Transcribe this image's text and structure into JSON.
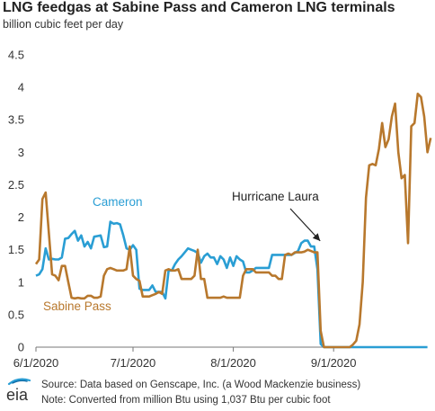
{
  "chart_data": {
    "type": "line",
    "title": "LNG feedgas at Sabine Pass and Cameron LNG terminals",
    "ylabel": "billion cubic feet per day",
    "ylim": [
      0,
      4.5
    ],
    "yticks": [
      "0",
      "0.5",
      "1",
      "1.5",
      "2",
      "2.5",
      "3",
      "3.5",
      "4",
      "4.5"
    ],
    "xlim": [
      "2020-06-01",
      "2020-09-30"
    ],
    "xticks": [
      {
        "date": "2020-06-01",
        "label": "6/1/2020"
      },
      {
        "date": "2020-07-01",
        "label": "7/1/2020"
      },
      {
        "date": "2020-08-01",
        "label": "8/1/2020"
      },
      {
        "date": "2020-09-01",
        "label": "9/1/2020"
      }
    ],
    "grid": false,
    "series": [
      {
        "name": "Cameron",
        "color": "#2a9ed4",
        "points": [
          [
            "2020-06-01",
            1.1
          ],
          [
            "2020-06-02",
            1.12
          ],
          [
            "2020-06-03",
            1.2
          ],
          [
            "2020-06-04",
            1.52
          ],
          [
            "2020-06-05",
            1.35
          ],
          [
            "2020-06-06",
            1.36
          ],
          [
            "2020-06-07",
            1.35
          ],
          [
            "2020-06-08",
            1.35
          ],
          [
            "2020-06-09",
            1.38
          ],
          [
            "2020-06-10",
            1.67
          ],
          [
            "2020-06-11",
            1.68
          ],
          [
            "2020-06-12",
            1.74
          ],
          [
            "2020-06-13",
            1.79
          ],
          [
            "2020-06-14",
            1.64
          ],
          [
            "2020-06-15",
            1.72
          ],
          [
            "2020-06-16",
            1.55
          ],
          [
            "2020-06-17",
            1.62
          ],
          [
            "2020-06-18",
            1.52
          ],
          [
            "2020-06-19",
            1.7
          ],
          [
            "2020-06-20",
            1.71
          ],
          [
            "2020-06-21",
            1.72
          ],
          [
            "2020-06-22",
            1.54
          ],
          [
            "2020-06-23",
            1.55
          ],
          [
            "2020-06-24",
            1.93
          ],
          [
            "2020-06-25",
            1.9
          ],
          [
            "2020-06-26",
            1.91
          ],
          [
            "2020-06-27",
            1.89
          ],
          [
            "2020-06-28",
            1.72
          ],
          [
            "2020-06-29",
            1.52
          ],
          [
            "2020-06-30",
            1.5
          ],
          [
            "2020-07-01",
            1.57
          ],
          [
            "2020-07-02",
            1.5
          ],
          [
            "2020-07-03",
            0.9
          ],
          [
            "2020-07-04",
            0.88
          ],
          [
            "2020-07-05",
            0.88
          ],
          [
            "2020-07-06",
            0.88
          ],
          [
            "2020-07-07",
            0.95
          ],
          [
            "2020-07-08",
            0.85
          ],
          [
            "2020-07-09",
            0.85
          ],
          [
            "2020-07-10",
            0.85
          ],
          [
            "2020-07-11",
            0.75
          ],
          [
            "2020-07-12",
            1.18
          ],
          [
            "2020-07-13",
            1.18
          ],
          [
            "2020-07-14",
            1.28
          ],
          [
            "2020-07-15",
            1.35
          ],
          [
            "2020-07-16",
            1.4
          ],
          [
            "2020-07-17",
            1.46
          ],
          [
            "2020-07-18",
            1.52
          ],
          [
            "2020-07-19",
            1.5
          ],
          [
            "2020-07-20",
            1.48
          ],
          [
            "2020-07-21",
            1.45
          ],
          [
            "2020-07-22",
            1.3
          ],
          [
            "2020-07-23",
            1.4
          ],
          [
            "2020-07-24",
            1.44
          ],
          [
            "2020-07-25",
            1.38
          ],
          [
            "2020-07-26",
            1.38
          ],
          [
            "2020-07-27",
            1.28
          ],
          [
            "2020-07-28",
            1.4
          ],
          [
            "2020-07-29",
            1.35
          ],
          [
            "2020-07-30",
            1.22
          ],
          [
            "2020-07-31",
            1.38
          ],
          [
            "2020-08-01",
            1.25
          ],
          [
            "2020-08-02",
            1.4
          ],
          [
            "2020-08-03",
            1.35
          ],
          [
            "2020-08-04",
            1.32
          ],
          [
            "2020-08-05",
            1.15
          ],
          [
            "2020-08-06",
            1.15
          ],
          [
            "2020-08-07",
            1.18
          ],
          [
            "2020-08-08",
            1.22
          ],
          [
            "2020-08-09",
            1.22
          ],
          [
            "2020-08-10",
            1.22
          ],
          [
            "2020-08-11",
            1.22
          ],
          [
            "2020-08-12",
            1.22
          ],
          [
            "2020-08-13",
            1.42
          ],
          [
            "2020-08-14",
            1.42
          ],
          [
            "2020-08-15",
            1.42
          ],
          [
            "2020-08-16",
            1.42
          ],
          [
            "2020-08-17",
            1.42
          ],
          [
            "2020-08-18",
            1.42
          ],
          [
            "2020-08-19",
            1.42
          ],
          [
            "2020-08-20",
            1.45
          ],
          [
            "2020-08-21",
            1.48
          ],
          [
            "2020-08-22",
            1.6
          ],
          [
            "2020-08-23",
            1.64
          ],
          [
            "2020-08-24",
            1.64
          ],
          [
            "2020-08-25",
            1.55
          ],
          [
            "2020-08-26",
            1.55
          ],
          [
            "2020-08-27",
            1.2
          ],
          [
            "2020-08-28",
            0.05
          ],
          [
            "2020-08-29",
            0.0
          ],
          [
            "2020-08-30",
            0.0
          ],
          [
            "2020-08-31",
            0.0
          ],
          [
            "2020-09-05",
            0.0
          ],
          [
            "2020-09-10",
            0.0
          ],
          [
            "2020-09-15",
            0.0
          ],
          [
            "2020-09-20",
            0.0
          ],
          [
            "2020-09-25",
            0.0
          ],
          [
            "2020-09-30",
            0.0
          ]
        ]
      },
      {
        "name": "Sabine Pass",
        "color": "#b8782d",
        "points": [
          [
            "2020-06-01",
            1.28
          ],
          [
            "2020-06-02",
            1.35
          ],
          [
            "2020-06-03",
            2.28
          ],
          [
            "2020-06-04",
            2.38
          ],
          [
            "2020-06-05",
            1.75
          ],
          [
            "2020-06-06",
            1.12
          ],
          [
            "2020-06-07",
            1.1
          ],
          [
            "2020-06-08",
            1.03
          ],
          [
            "2020-06-09",
            1.25
          ],
          [
            "2020-06-10",
            1.25
          ],
          [
            "2020-06-11",
            1.0
          ],
          [
            "2020-06-12",
            0.76
          ],
          [
            "2020-06-13",
            0.75
          ],
          [
            "2020-06-14",
            0.76
          ],
          [
            "2020-06-15",
            0.75
          ],
          [
            "2020-06-16",
            0.75
          ],
          [
            "2020-06-17",
            0.79
          ],
          [
            "2020-06-18",
            0.79
          ],
          [
            "2020-06-19",
            0.76
          ],
          [
            "2020-06-20",
            0.76
          ],
          [
            "2020-06-21",
            0.78
          ],
          [
            "2020-06-22",
            1.1
          ],
          [
            "2020-06-23",
            1.2
          ],
          [
            "2020-06-24",
            1.22
          ],
          [
            "2020-06-25",
            1.2
          ],
          [
            "2020-06-26",
            1.18
          ],
          [
            "2020-06-27",
            1.18
          ],
          [
            "2020-06-28",
            1.18
          ],
          [
            "2020-06-29",
            1.2
          ],
          [
            "2020-06-30",
            1.55
          ],
          [
            "2020-07-01",
            1.1
          ],
          [
            "2020-07-02",
            1.05
          ],
          [
            "2020-07-03",
            1.02
          ],
          [
            "2020-07-04",
            0.78
          ],
          [
            "2020-07-05",
            0.78
          ],
          [
            "2020-07-06",
            0.78
          ],
          [
            "2020-07-07",
            0.8
          ],
          [
            "2020-07-08",
            0.82
          ],
          [
            "2020-07-09",
            0.85
          ],
          [
            "2020-07-10",
            0.82
          ],
          [
            "2020-07-11",
            1.18
          ],
          [
            "2020-07-12",
            1.2
          ],
          [
            "2020-07-13",
            1.18
          ],
          [
            "2020-07-14",
            1.18
          ],
          [
            "2020-07-15",
            1.2
          ],
          [
            "2020-07-16",
            1.05
          ],
          [
            "2020-07-17",
            1.05
          ],
          [
            "2020-07-18",
            1.05
          ],
          [
            "2020-07-19",
            1.05
          ],
          [
            "2020-07-20",
            1.1
          ],
          [
            "2020-07-21",
            1.5
          ],
          [
            "2020-07-22",
            1.05
          ],
          [
            "2020-07-23",
            1.05
          ],
          [
            "2020-07-24",
            0.76
          ],
          [
            "2020-07-25",
            0.76
          ],
          [
            "2020-07-26",
            0.76
          ],
          [
            "2020-07-27",
            0.76
          ],
          [
            "2020-07-28",
            0.76
          ],
          [
            "2020-07-29",
            0.78
          ],
          [
            "2020-07-30",
            0.76
          ],
          [
            "2020-07-31",
            0.76
          ],
          [
            "2020-08-01",
            0.76
          ],
          [
            "2020-08-02",
            0.76
          ],
          [
            "2020-08-03",
            0.76
          ],
          [
            "2020-08-04",
            1.1
          ],
          [
            "2020-08-05",
            1.2
          ],
          [
            "2020-08-06",
            1.2
          ],
          [
            "2020-08-07",
            1.2
          ],
          [
            "2020-08-08",
            1.15
          ],
          [
            "2020-08-09",
            1.15
          ],
          [
            "2020-08-10",
            1.15
          ],
          [
            "2020-08-11",
            1.15
          ],
          [
            "2020-08-12",
            1.15
          ],
          [
            "2020-08-13",
            1.1
          ],
          [
            "2020-08-14",
            1.1
          ],
          [
            "2020-08-15",
            1.05
          ],
          [
            "2020-08-16",
            1.05
          ],
          [
            "2020-08-17",
            1.42
          ],
          [
            "2020-08-18",
            1.44
          ],
          [
            "2020-08-19",
            1.42
          ],
          [
            "2020-08-20",
            1.46
          ],
          [
            "2020-08-21",
            1.46
          ],
          [
            "2020-08-22",
            1.46
          ],
          [
            "2020-08-23",
            1.47
          ],
          [
            "2020-08-24",
            1.5
          ],
          [
            "2020-08-25",
            1.48
          ],
          [
            "2020-08-26",
            1.46
          ],
          [
            "2020-08-27",
            1.46
          ],
          [
            "2020-08-28",
            0.25
          ],
          [
            "2020-08-29",
            0.0
          ],
          [
            "2020-08-30",
            0.0
          ],
          [
            "2020-08-31",
            0.0
          ],
          [
            "2020-09-01",
            0.0
          ],
          [
            "2020-09-02",
            0.0
          ],
          [
            "2020-09-03",
            0.0
          ],
          [
            "2020-09-04",
            0.0
          ],
          [
            "2020-09-05",
            0.0
          ],
          [
            "2020-09-06",
            0.0
          ],
          [
            "2020-09-07",
            0.04
          ],
          [
            "2020-09-08",
            0.1
          ],
          [
            "2020-09-09",
            0.35
          ],
          [
            "2020-09-10",
            1.0
          ],
          [
            "2020-09-11",
            2.3
          ],
          [
            "2020-09-12",
            2.8
          ],
          [
            "2020-09-13",
            2.82
          ],
          [
            "2020-09-14",
            2.8
          ],
          [
            "2020-09-15",
            3.05
          ],
          [
            "2020-09-16",
            3.45
          ],
          [
            "2020-09-17",
            3.08
          ],
          [
            "2020-09-18",
            3.2
          ],
          [
            "2020-09-19",
            3.55
          ],
          [
            "2020-09-20",
            3.75
          ],
          [
            "2020-09-21",
            3.0
          ],
          [
            "2020-09-22",
            2.6
          ],
          [
            "2020-09-23",
            2.65
          ],
          [
            "2020-09-24",
            1.6
          ],
          [
            "2020-09-25",
            3.4
          ],
          [
            "2020-09-26",
            3.45
          ],
          [
            "2020-09-27",
            3.9
          ],
          [
            "2020-09-28",
            3.85
          ],
          [
            "2020-09-29",
            3.55
          ],
          [
            "2020-09-30",
            3.0
          ],
          [
            "2020-10-01",
            3.22
          ]
        ]
      }
    ],
    "annotations": [
      {
        "text": "Cameron",
        "color": "#2a9ed4"
      },
      {
        "text": "Sabine Pass",
        "color": "#b8782d"
      },
      {
        "text": "Hurricane Laura",
        "color": "#222222",
        "arrow_to": [
          "2020-08-27",
          1.58
        ]
      }
    ]
  },
  "footer": {
    "logo_text": "eia",
    "source": "Source:  Data based on Genscape, Inc. (a Wood Mackenzie business)",
    "note": "Note: Converted from million Btu using 1,037 Btu per cubic foot"
  }
}
